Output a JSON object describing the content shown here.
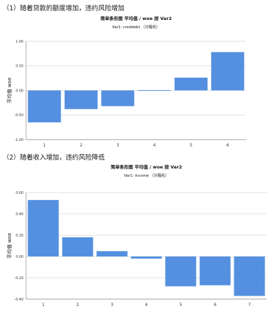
{
  "headings": [
    "（1）随着贷款的额度增加，违约风险增加",
    "（2）随着收入增加，违约风险降低"
  ],
  "colors": {
    "bar": "#5590e0",
    "grid": "#d8d8d8",
    "axis": "#888888"
  },
  "chart_data": [
    {
      "type": "bar",
      "title": "简单条形图 平均值 / woe 按 Var2",
      "subtitle": "Var1: creddebt （分箱化）",
      "ylabel": "平均值 woe",
      "xlabel": "",
      "categories": [
        "1",
        "2",
        "3",
        "4",
        "5",
        "6"
      ],
      "values": [
        -0.65,
        -0.38,
        -0.32,
        0.0,
        0.26,
        0.78
      ],
      "ylim": [
        -1.0,
        1.0
      ],
      "yticks": [
        "1.00",
        "0.50",
        "0.00",
        "-0.50",
        "-1.00"
      ],
      "ytick_values": [
        1.0,
        0.5,
        0.0,
        -0.5,
        -1.0
      ],
      "grid": true
    },
    {
      "type": "bar",
      "title": "简单条形图 平均值 / woe 按 Var2",
      "subtitle": "Var1: income （分箱化）",
      "ylabel": "平均值 woe",
      "xlabel": "",
      "categories": [
        "1",
        "2",
        "3",
        "4",
        "5",
        "6",
        "7"
      ],
      "values": [
        0.53,
        0.18,
        0.05,
        -0.02,
        -0.28,
        -0.27,
        -0.37
      ],
      "ylim": [
        -0.4,
        0.6
      ],
      "yticks": [
        "0.60",
        "0.40",
        "0.20",
        "0.00",
        "-0.20",
        "-0.40"
      ],
      "ytick_values": [
        0.6,
        0.4,
        0.2,
        0.0,
        -0.2,
        -0.4
      ],
      "grid": true
    }
  ]
}
